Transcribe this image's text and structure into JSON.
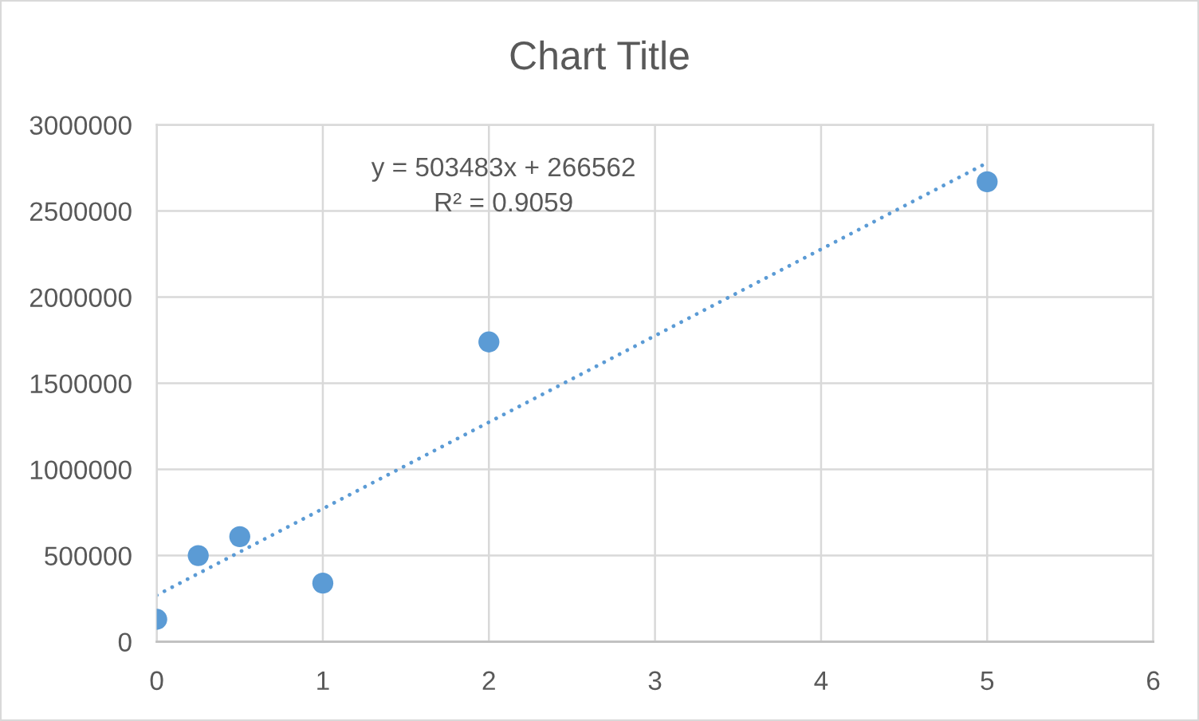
{
  "chart_data": {
    "type": "scatter",
    "title": "Chart Title",
    "x": [
      0,
      0.25,
      0.5,
      1,
      2,
      5
    ],
    "series": [
      {
        "color": "#5b9bd5",
        "marker": "circle",
        "values": [
          130000,
          500000,
          610000,
          340000,
          1740000,
          2670000
        ]
      },
      {
        "type": "line",
        "x": [
          0,
          5
        ],
        "color": "#5b9bd5",
        "line_style": "dotted",
        "marker": "none",
        "values": [
          270000,
          2780000
        ]
      }
    ],
    "annotations": [
      "y = 503483x + 266562",
      "R² = 0.9059"
    ],
    "xlim": [
      0,
      6
    ],
    "xticks": [
      0,
      1,
      2,
      3,
      4,
      5,
      6
    ],
    "ylim": [
      0,
      3000000
    ],
    "yticks": [
      0,
      500000,
      1000000,
      1500000,
      2000000,
      2500000,
      3000000
    ],
    "grid": true
  }
}
